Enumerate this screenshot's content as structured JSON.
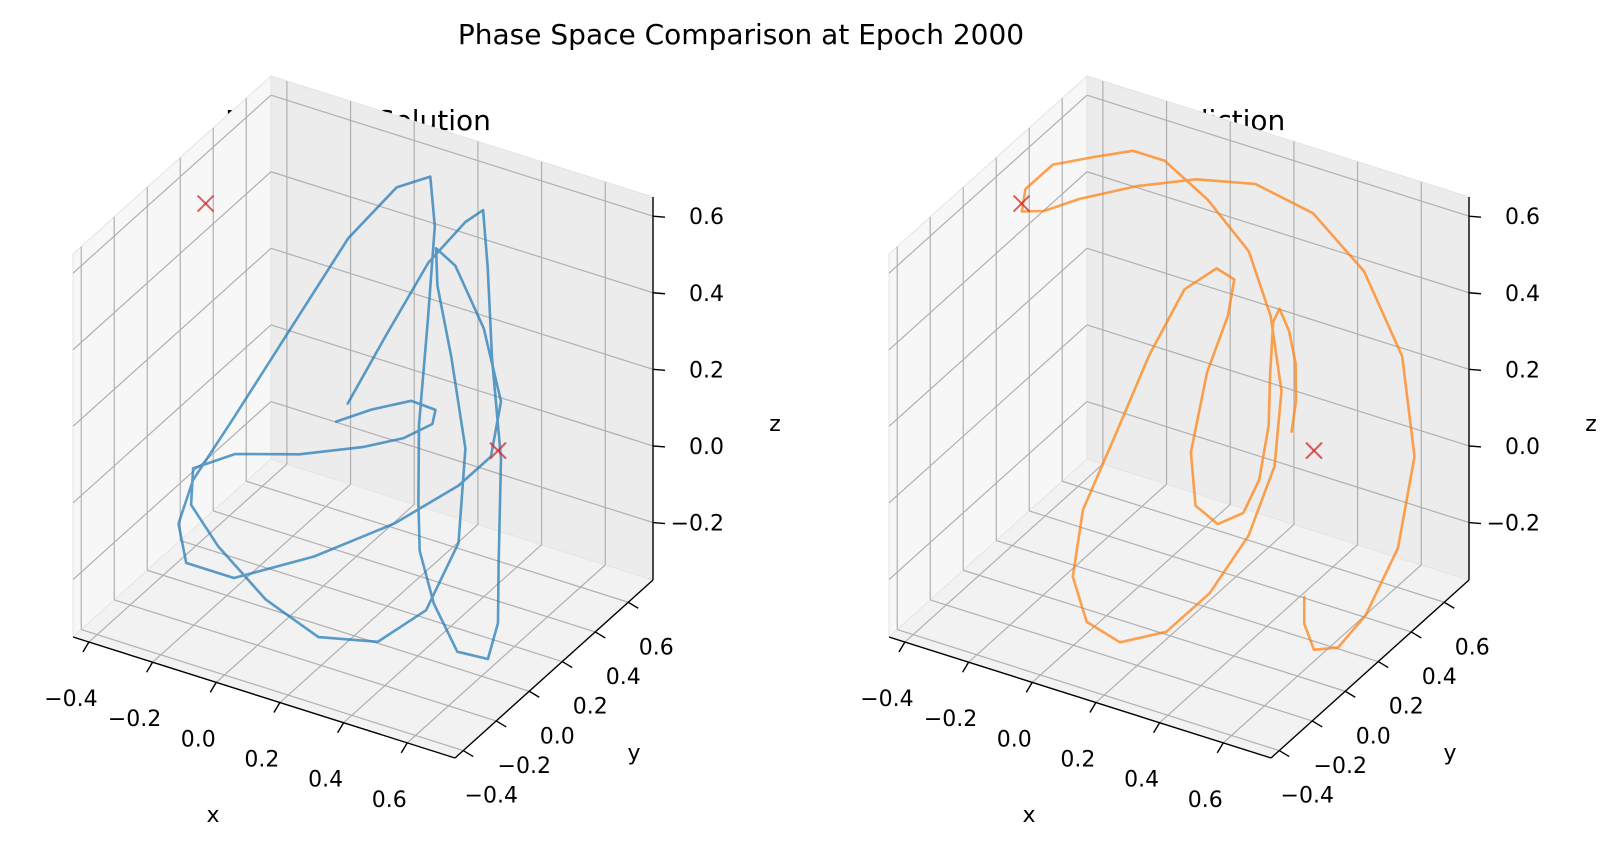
{
  "suptitle": "Phase Space Comparison at Epoch 2000",
  "chart_data": [
    {
      "type": "line3d",
      "title": "Numerical Solution",
      "xlabel": "x",
      "ylabel": "y",
      "zlabel": "z",
      "xlim": [
        -0.45,
        0.75
      ],
      "ylim": [
        -0.45,
        0.75
      ],
      "zlim": [
        -0.35,
        0.65
      ],
      "x_ticks": [
        "−0.4",
        "−0.2",
        "0.0",
        "0.2",
        "0.4",
        "0.6"
      ],
      "y_ticks": [
        "−0.4",
        "−0.2",
        "0.0",
        "0.2",
        "0.4",
        "0.6"
      ],
      "z_ticks": [
        "−0.2",
        "0.0",
        "0.2",
        "0.4",
        "0.6"
      ],
      "series": [
        {
          "color": "#1f77b4",
          "points": [
            [
              0.05,
              0.25,
              0.12
            ],
            [
              0.12,
              0.35,
              0.28
            ],
            [
              0.2,
              0.45,
              0.45
            ],
            [
              0.28,
              0.52,
              0.55
            ],
            [
              0.32,
              0.55,
              0.58
            ],
            [
              0.35,
              0.52,
              0.45
            ],
            [
              0.4,
              0.45,
              0.25
            ],
            [
              0.48,
              0.35,
              0.05
            ],
            [
              0.55,
              0.2,
              -0.15
            ],
            [
              0.6,
              0.1,
              -0.25
            ],
            [
              0.62,
              0.0,
              -0.3
            ],
            [
              0.55,
              -0.05,
              -0.28
            ],
            [
              0.45,
              0.0,
              -0.2
            ],
            [
              0.38,
              0.05,
              -0.1
            ],
            [
              0.35,
              0.1,
              0.0
            ],
            [
              0.3,
              0.2,
              0.15
            ],
            [
              0.25,
              0.35,
              0.35
            ],
            [
              0.22,
              0.45,
              0.55
            ],
            [
              0.18,
              0.5,
              0.65
            ],
            [
              0.1,
              0.45,
              0.62
            ],
            [
              0.0,
              0.35,
              0.5
            ],
            [
              -0.1,
              0.2,
              0.3
            ],
            [
              -0.2,
              0.05,
              0.1
            ],
            [
              -0.28,
              -0.05,
              -0.05
            ],
            [
              -0.3,
              -0.1,
              -0.15
            ],
            [
              -0.25,
              -0.15,
              -0.22
            ],
            [
              -0.1,
              -0.15,
              -0.22
            ],
            [
              0.1,
              -0.05,
              -0.15
            ],
            [
              0.3,
              0.05,
              -0.05
            ],
            [
              0.45,
              0.15,
              0.05
            ],
            [
              0.5,
              0.25,
              0.1
            ],
            [
              0.48,
              0.35,
              0.2
            ],
            [
              0.4,
              0.4,
              0.35
            ],
            [
              0.3,
              0.42,
              0.48
            ],
            [
              0.25,
              0.4,
              0.52
            ],
            [
              0.28,
              0.35,
              0.45
            ],
            [
              0.35,
              0.3,
              0.3
            ],
            [
              0.42,
              0.25,
              0.1
            ],
            [
              0.45,
              0.15,
              -0.1
            ],
            [
              0.4,
              0.05,
              -0.25
            ],
            [
              0.3,
              -0.05,
              -0.32
            ],
            [
              0.15,
              -0.12,
              -0.32
            ],
            [
              0.0,
              -0.15,
              -0.25
            ],
            [
              -0.15,
              -0.15,
              -0.15
            ],
            [
              -0.25,
              -0.12,
              -0.08
            ],
            [
              -0.28,
              -0.05,
              -0.02
            ],
            [
              -0.2,
              0.05,
              0.0
            ],
            [
              -0.05,
              0.15,
              0.0
            ],
            [
              0.1,
              0.25,
              0.02
            ],
            [
              0.2,
              0.3,
              0.05
            ],
            [
              0.28,
              0.32,
              0.1
            ],
            [
              0.3,
              0.3,
              0.15
            ],
            [
              0.25,
              0.25,
              0.18
            ],
            [
              0.15,
              0.2,
              0.15
            ],
            [
              0.05,
              0.18,
              0.1
            ]
          ]
        }
      ],
      "markers": [
        {
          "label": "",
          "color": "#d62728",
          "points": [
            [
              -0.5,
              0.45,
              0.42
            ],
            [
              0.6,
              0.1,
              0.2
            ]
          ]
        }
      ]
    },
    {
      "type": "line3d",
      "title": "LSTM Prediction",
      "xlabel": "x",
      "ylabel": "y",
      "zlabel": "z",
      "xlim": [
        -0.45,
        0.75
      ],
      "ylim": [
        -0.45,
        0.75
      ],
      "zlim": [
        -0.35,
        0.65
      ],
      "x_ticks": [
        "−0.4",
        "−0.2",
        "0.0",
        "0.2",
        "0.4",
        "0.6"
      ],
      "y_ticks": [
        "−0.4",
        "−0.2",
        "0.0",
        "0.2",
        "0.4",
        "0.6"
      ],
      "z_ticks": [
        "−0.2",
        "0.0",
        "0.2",
        "0.4",
        "0.6"
      ],
      "series": [
        {
          "color": "#ff7f0e",
          "points": [
            [
              0.4,
              0.35,
              0.1
            ],
            [
              0.45,
              0.28,
              0.22
            ],
            [
              0.48,
              0.22,
              0.35
            ],
            [
              0.48,
              0.18,
              0.45
            ],
            [
              0.45,
              0.18,
              0.5
            ],
            [
              0.42,
              0.2,
              0.45
            ],
            [
              0.4,
              0.22,
              0.3
            ],
            [
              0.38,
              0.25,
              0.15
            ],
            [
              0.35,
              0.25,
              0.0
            ],
            [
              0.3,
              0.25,
              -0.1
            ],
            [
              0.22,
              0.25,
              -0.15
            ],
            [
              0.15,
              0.25,
              -0.12
            ],
            [
              0.12,
              0.28,
              0.0
            ],
            [
              0.15,
              0.32,
              0.2
            ],
            [
              0.2,
              0.35,
              0.35
            ],
            [
              0.22,
              0.35,
              0.45
            ],
            [
              0.18,
              0.32,
              0.48
            ],
            [
              0.1,
              0.28,
              0.42
            ],
            [
              0.02,
              0.22,
              0.25
            ],
            [
              -0.05,
              0.15,
              0.05
            ],
            [
              -0.1,
              0.05,
              -0.12
            ],
            [
              -0.08,
              -0.05,
              -0.25
            ],
            [
              0.0,
              -0.12,
              -0.32
            ],
            [
              0.12,
              -0.15,
              -0.33
            ],
            [
              0.25,
              -0.12,
              -0.28
            ],
            [
              0.35,
              -0.05,
              -0.18
            ],
            [
              0.42,
              0.05,
              -0.05
            ],
            [
              0.45,
              0.15,
              0.1
            ],
            [
              0.42,
              0.25,
              0.25
            ],
            [
              0.35,
              0.32,
              0.4
            ],
            [
              0.25,
              0.38,
              0.52
            ],
            [
              0.1,
              0.42,
              0.6
            ],
            [
              -0.05,
              0.45,
              0.65
            ],
            [
              -0.15,
              0.45,
              0.65
            ],
            [
              -0.25,
              0.42,
              0.62
            ],
            [
              -0.35,
              0.35,
              0.6
            ],
            [
              -0.4,
              0.28,
              0.55
            ],
            [
              -0.38,
              0.22,
              0.52
            ],
            [
              -0.3,
              0.2,
              0.55
            ],
            [
              -0.2,
              0.22,
              0.6
            ],
            [
              -0.05,
              0.28,
              0.65
            ],
            [
              0.1,
              0.35,
              0.68
            ],
            [
              0.25,
              0.42,
              0.68
            ],
            [
              0.4,
              0.48,
              0.62
            ],
            [
              0.55,
              0.5,
              0.5
            ],
            [
              0.68,
              0.48,
              0.32
            ],
            [
              0.75,
              0.42,
              0.1
            ],
            [
              0.75,
              0.32,
              -0.1
            ],
            [
              0.7,
              0.22,
              -0.25
            ],
            [
              0.65,
              0.15,
              -0.32
            ],
            [
              0.6,
              0.1,
              -0.32
            ],
            [
              0.58,
              0.08,
              -0.25
            ],
            [
              0.58,
              0.08,
              -0.18
            ]
          ]
        }
      ],
      "markers": [
        {
          "label": "",
          "color": "#d62728",
          "points": [
            [
              -0.5,
              0.45,
              0.42
            ],
            [
              0.6,
              0.1,
              0.2
            ]
          ]
        }
      ]
    }
  ]
}
